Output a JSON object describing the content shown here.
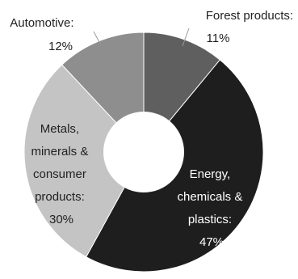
{
  "chart_data": {
    "type": "pie",
    "donut": true,
    "categories": [
      "Forest products",
      "Energy, chemicals & plastics",
      "Metals, minerals & consumer products",
      "Automotive"
    ],
    "values": [
      11,
      47,
      30,
      12
    ],
    "value_labels": [
      "11%",
      "47%",
      "30%",
      "12%"
    ],
    "colors": [
      "#5f5f5f",
      "#1f1e1e",
      "#c4c4c4",
      "#8e8e8e"
    ],
    "label_lines": [
      [
        "Forest products:",
        "11%"
      ],
      [
        "Energy,",
        "chemicals &",
        "plastics:",
        "47%"
      ],
      [
        "Metals,",
        "minerals &",
        "consumer",
        "products:",
        "30%"
      ],
      [
        "Automotive:",
        "12%"
      ]
    ]
  }
}
